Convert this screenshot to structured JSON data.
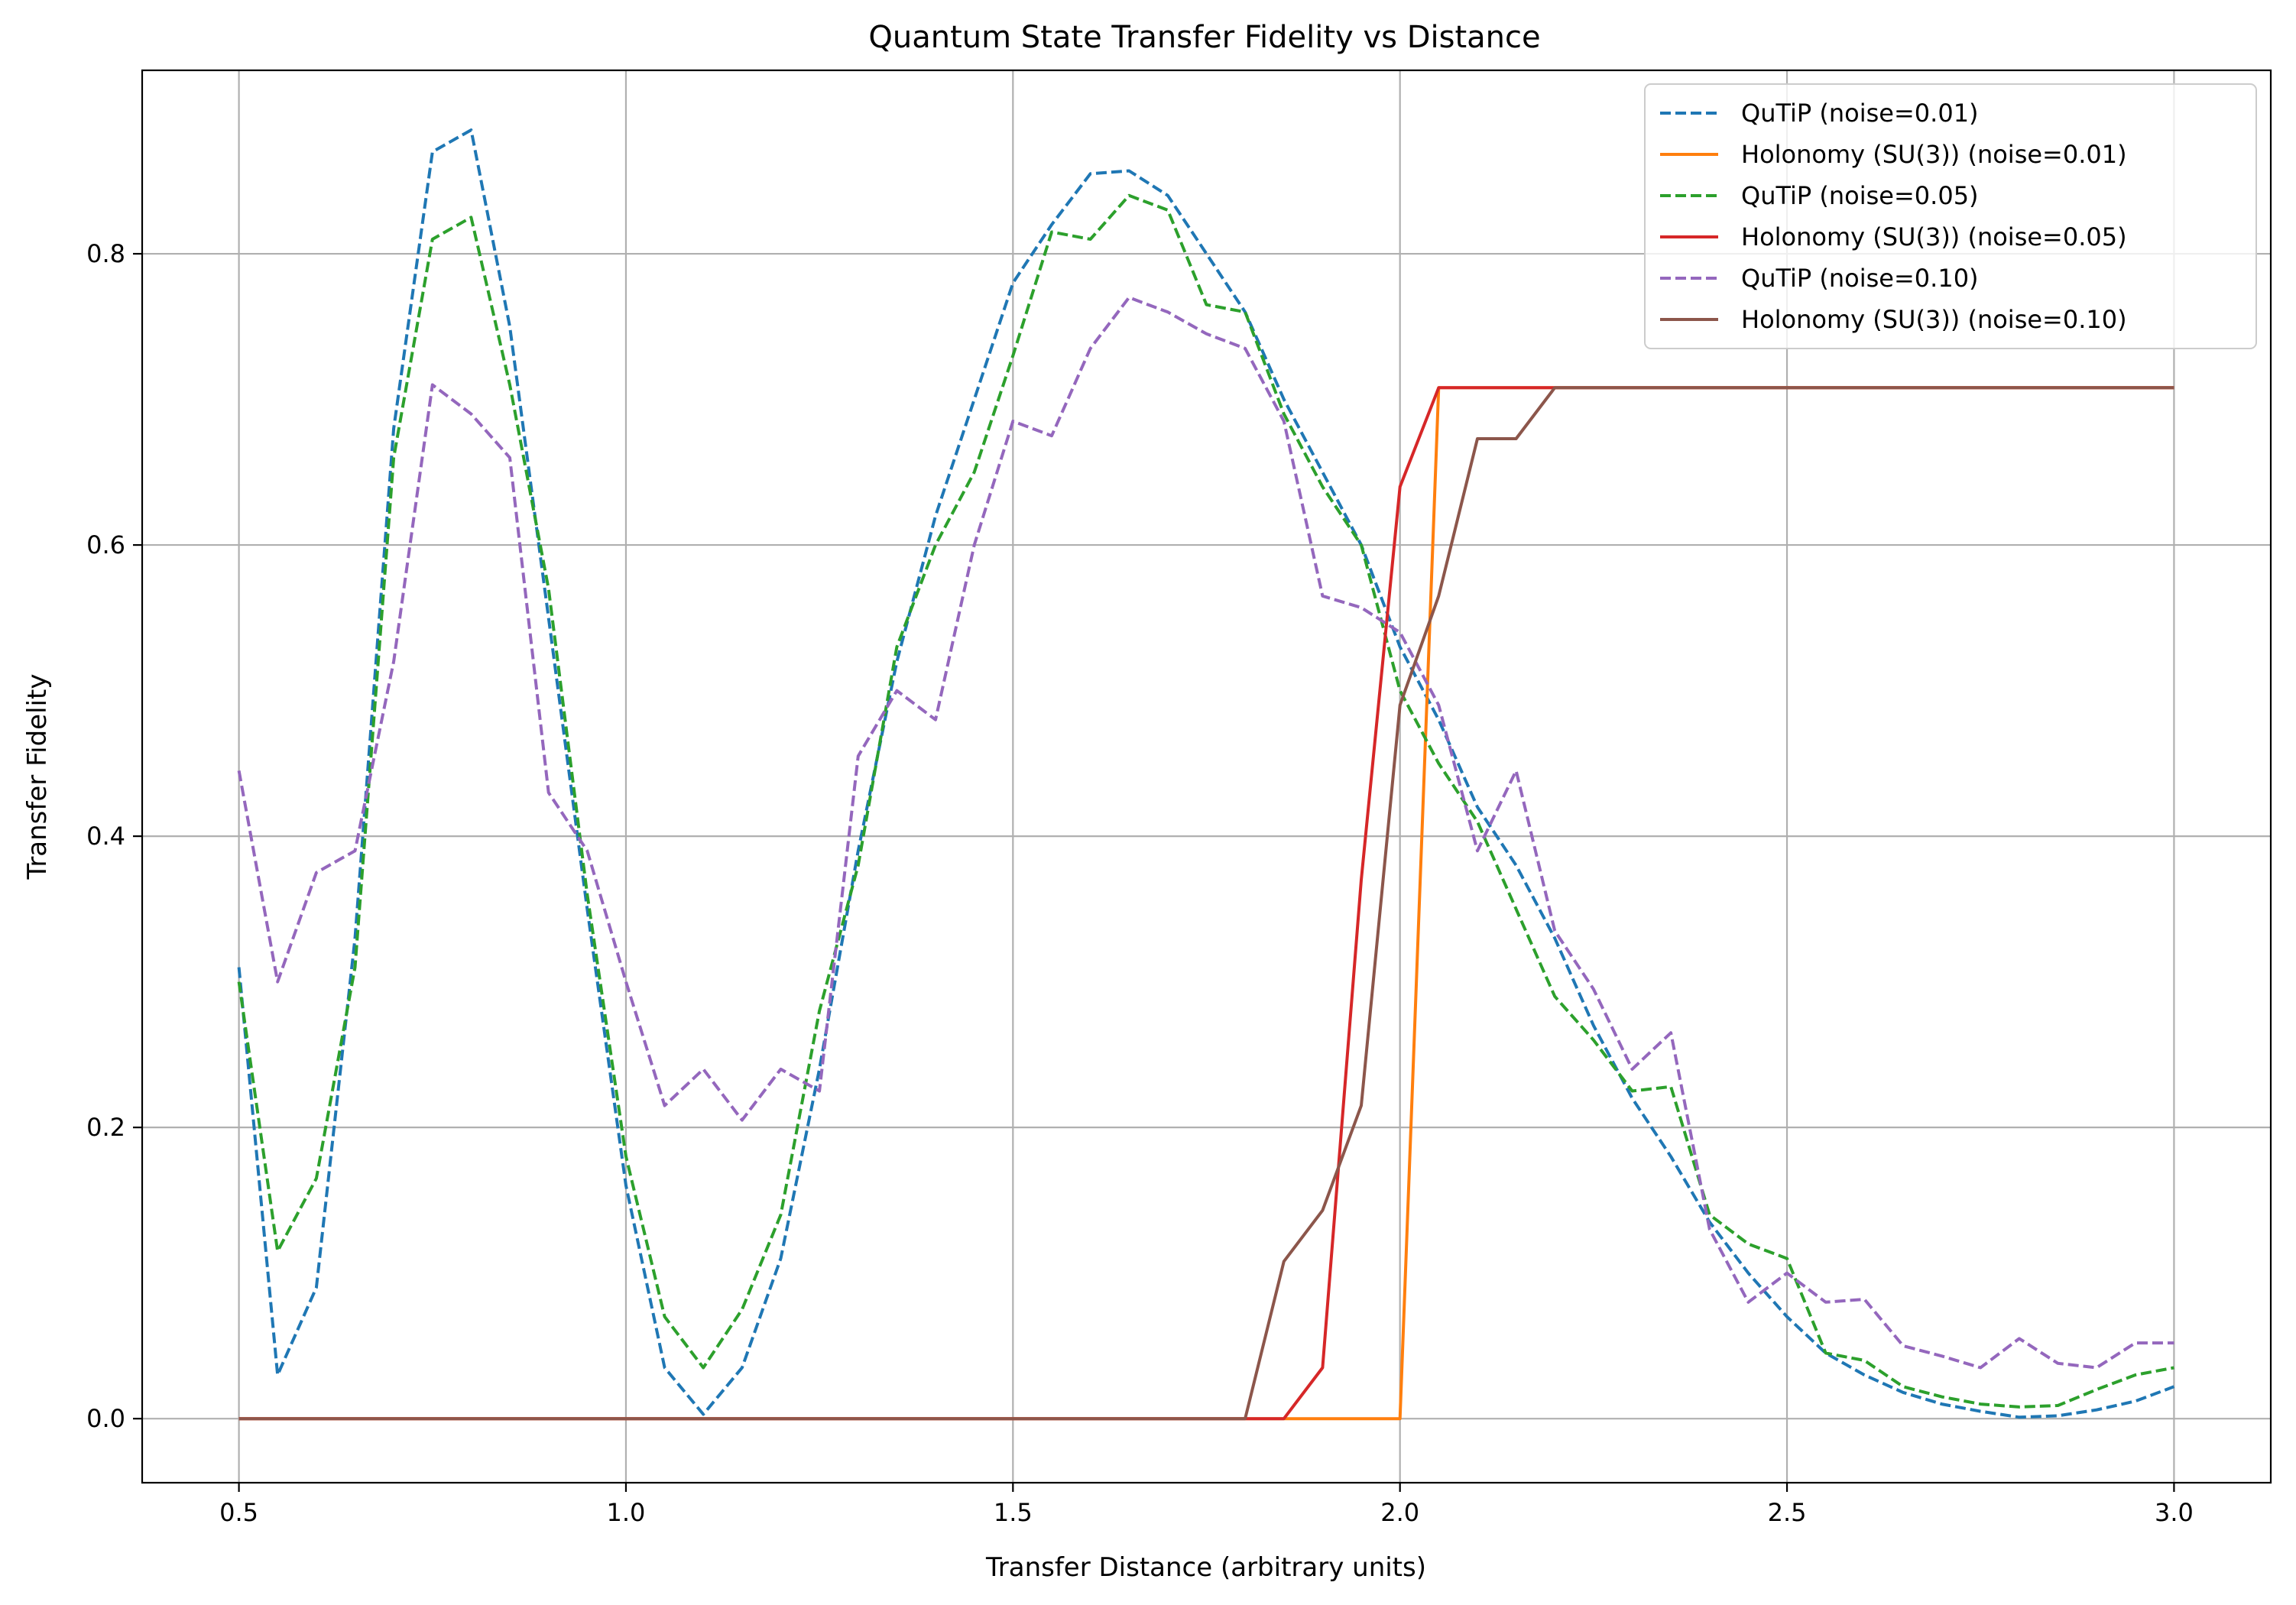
{
  "chart_data": {
    "type": "line",
    "title": "Quantum State Transfer Fidelity vs Distance",
    "xlabel": "Transfer Distance (arbitrary units)",
    "ylabel": "Transfer Fidelity",
    "xlim": [
      0.375,
      3.125
    ],
    "ylim": [
      -0.044,
      0.926
    ],
    "xticks": [
      0.5,
      1.0,
      1.5,
      2.0,
      2.5,
      3.0
    ],
    "xtick_labels": [
      "0.5",
      "1.0",
      "1.5",
      "2.0",
      "2.5",
      "3.0"
    ],
    "yticks": [
      0.0,
      0.2,
      0.4,
      0.6,
      0.8
    ],
    "ytick_labels": [
      "0.0",
      "0.2",
      "0.4",
      "0.6",
      "0.8"
    ],
    "grid": true,
    "legend_position": "top-right",
    "x": [
      0.5,
      0.55,
      0.6,
      0.65,
      0.7,
      0.75,
      0.8,
      0.85,
      0.9,
      0.95,
      1.0,
      1.05,
      1.1,
      1.15,
      1.2,
      1.25,
      1.3,
      1.35,
      1.4,
      1.45,
      1.5,
      1.55,
      1.6,
      1.65,
      1.7,
      1.75,
      1.8,
      1.85,
      1.9,
      1.95,
      2.0,
      2.05,
      2.1,
      2.15,
      2.2,
      2.25,
      2.3,
      2.35,
      2.4,
      2.45,
      2.5,
      2.55,
      2.6,
      2.65,
      2.7,
      2.75,
      2.8,
      2.85,
      2.9,
      2.95,
      3.0
    ],
    "series": [
      {
        "name": "QuTiP (noise=0.01)",
        "color": "#1f77b4",
        "dash": "dashed",
        "values": [
          0.31,
          0.03,
          0.09,
          0.33,
          0.68,
          0.87,
          0.885,
          0.75,
          0.55,
          0.35,
          0.16,
          0.035,
          0.003,
          0.035,
          0.11,
          0.24,
          0.39,
          0.52,
          0.62,
          0.7,
          0.78,
          0.82,
          0.855,
          0.857,
          0.84,
          0.8,
          0.76,
          0.7,
          0.65,
          0.6,
          0.53,
          0.48,
          0.42,
          0.38,
          0.33,
          0.27,
          0.22,
          0.18,
          0.135,
          0.1,
          0.07,
          0.045,
          0.03,
          0.018,
          0.01,
          0.005,
          0.001,
          0.002,
          0.006,
          0.012,
          0.022
        ]
      },
      {
        "name": "Holonomy (SU(3)) (noise=0.01)",
        "color": "#ff7f0e",
        "dash": "solid",
        "values": [
          0,
          0,
          0,
          0,
          0,
          0,
          0,
          0,
          0,
          0,
          0,
          0,
          0,
          0,
          0,
          0,
          0,
          0,
          0,
          0,
          0,
          0,
          0,
          0,
          0,
          0,
          0,
          0,
          0,
          0,
          0,
          0.708,
          0.708,
          0.708,
          0.708,
          0.708,
          0.708,
          0.708,
          0.708,
          0.708,
          0.708,
          0.708,
          0.708,
          0.708,
          0.708,
          0.708,
          0.708,
          0.708,
          0.708,
          0.708,
          0.708
        ]
      },
      {
        "name": "QuTiP (noise=0.05)",
        "color": "#2ca02c",
        "dash": "dashed",
        "values": [
          0.3,
          0.115,
          0.165,
          0.31,
          0.66,
          0.81,
          0.825,
          0.71,
          0.57,
          0.36,
          0.18,
          0.07,
          0.035,
          0.075,
          0.14,
          0.28,
          0.38,
          0.53,
          0.6,
          0.65,
          0.73,
          0.815,
          0.81,
          0.84,
          0.83,
          0.765,
          0.76,
          0.69,
          0.64,
          0.6,
          0.5,
          0.45,
          0.41,
          0.35,
          0.29,
          0.26,
          0.225,
          0.228,
          0.14,
          0.12,
          0.11,
          0.045,
          0.04,
          0.022,
          0.015,
          0.01,
          0.008,
          0.009,
          0.02,
          0.03,
          0.035
        ]
      },
      {
        "name": "Holonomy (SU(3)) (noise=0.05)",
        "color": "#d62728",
        "dash": "solid",
        "values": [
          0,
          0,
          0,
          0,
          0,
          0,
          0,
          0,
          0,
          0,
          0,
          0,
          0,
          0,
          0,
          0,
          0,
          0,
          0,
          0,
          0,
          0,
          0,
          0,
          0,
          0,
          0,
          0,
          0.035,
          0.37,
          0.64,
          0.708,
          0.708,
          0.708,
          0.708,
          0.708,
          0.708,
          0.708,
          0.708,
          0.708,
          0.708,
          0.708,
          0.708,
          0.708,
          0.708,
          0.708,
          0.708,
          0.708,
          0.708,
          0.708,
          0.708
        ]
      },
      {
        "name": "QuTiP (noise=0.10)",
        "color": "#9467bd",
        "dash": "dashed",
        "values": [
          0.445,
          0.3,
          0.375,
          0.39,
          0.52,
          0.71,
          0.69,
          0.66,
          0.43,
          0.39,
          0.3,
          0.215,
          0.24,
          0.205,
          0.24,
          0.225,
          0.455,
          0.5,
          0.48,
          0.6,
          0.685,
          0.675,
          0.735,
          0.77,
          0.76,
          0.745,
          0.735,
          0.685,
          0.565,
          0.557,
          0.54,
          0.49,
          0.39,
          0.445,
          0.335,
          0.295,
          0.24,
          0.265,
          0.13,
          0.08,
          0.1,
          0.08,
          0.082,
          0.05,
          0.043,
          0.035,
          0.055,
          0.038,
          0.035,
          0.052,
          0.052
        ]
      },
      {
        "name": "Holonomy (SU(3)) (noise=0.10)",
        "color": "#8c564b",
        "dash": "solid",
        "values": [
          0,
          0,
          0,
          0,
          0,
          0,
          0,
          0,
          0,
          0,
          0,
          0,
          0,
          0,
          0,
          0,
          0,
          0,
          0,
          0,
          0,
          0,
          0,
          0,
          0,
          0,
          0,
          0.108,
          0.143,
          0.215,
          0.49,
          0.565,
          0.673,
          0.673,
          0.708,
          0.708,
          0.708,
          0.708,
          0.708,
          0.708,
          0.708,
          0.708,
          0.708,
          0.708,
          0.708,
          0.708,
          0.708,
          0.708,
          0.708,
          0.708,
          0.708
        ]
      }
    ]
  }
}
